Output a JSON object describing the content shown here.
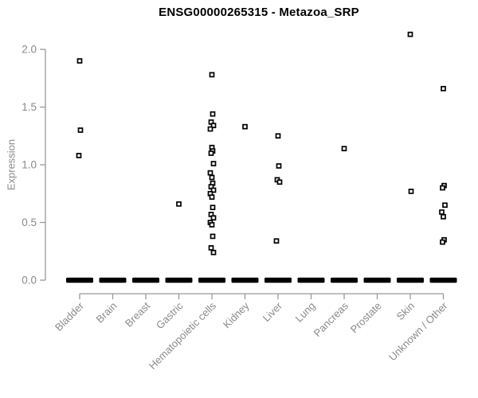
{
  "chart_data": {
    "type": "scatter",
    "subtype": "strip-plot",
    "title": "ENSG00000265315 - Metazoa_SRP",
    "xlabel": "",
    "ylabel": "Expression",
    "yticks": [
      "0.0",
      "0.5",
      "1.0",
      "1.5",
      "2.0"
    ],
    "ylim": [
      0,
      2.2
    ],
    "grid": "off",
    "legend": "none",
    "marker": "open-square",
    "categories": [
      "Bladder",
      "Brain",
      "Breast",
      "Gastric",
      "Hematopoietic cells",
      "Kidney",
      "Liver",
      "Lung",
      "Pancreas",
      "Prostate",
      "Skin",
      "Unknown / Other"
    ],
    "groups": [
      {
        "label": "Bladder",
        "points": [
          1.9,
          1.3,
          1.08
        ],
        "zero_cluster": true
      },
      {
        "label": "Brain",
        "points": [],
        "zero_cluster": true
      },
      {
        "label": "Breast",
        "points": [],
        "zero_cluster": true
      },
      {
        "label": "Gastric",
        "points": [
          0.66
        ],
        "zero_cluster": true
      },
      {
        "label": "Hematopoietic cells",
        "points": [
          1.78,
          1.44,
          1.37,
          1.34,
          1.31,
          1.15,
          1.12,
          1.1,
          1.01,
          0.93,
          0.89,
          0.84,
          0.81,
          0.78,
          0.75,
          0.72,
          0.63,
          0.57,
          0.54,
          0.5,
          0.48,
          0.38,
          0.28,
          0.24
        ],
        "zero_cluster": true
      },
      {
        "label": "Kidney",
        "points": [
          1.33
        ],
        "zero_cluster": true
      },
      {
        "label": "Liver",
        "points": [
          1.25,
          0.99,
          0.87,
          0.85,
          0.34
        ],
        "zero_cluster": true
      },
      {
        "label": "Lung",
        "points": [],
        "zero_cluster": true
      },
      {
        "label": "Pancreas",
        "points": [
          1.14
        ],
        "zero_cluster": true
      },
      {
        "label": "Prostate",
        "points": [],
        "zero_cluster": true
      },
      {
        "label": "Skin",
        "points": [
          2.13,
          0.77
        ],
        "zero_cluster": true
      },
      {
        "label": "Unknown / Other",
        "points": [
          1.66,
          0.82,
          0.8,
          0.65,
          0.59,
          0.55,
          0.35,
          0.33
        ],
        "zero_cluster": true
      }
    ],
    "colors": {
      "marker_stroke": "#000000",
      "marker_fill": "#ffffff",
      "zero_bar": "#000000",
      "axis": "#999999",
      "tick_text": "#8a8a8a",
      "title_text": "#000000"
    }
  }
}
